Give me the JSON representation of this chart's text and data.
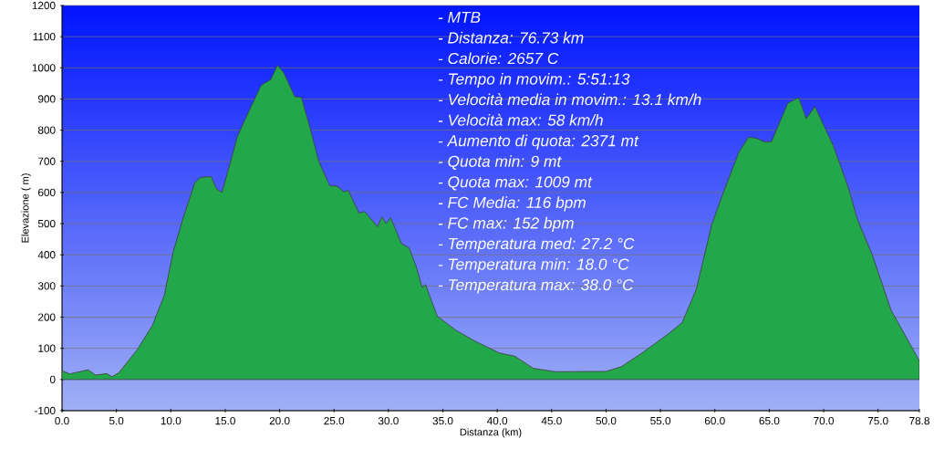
{
  "chart_data": {
    "type": "area",
    "xlabel": "Distanza (km)",
    "ylabel": "Elevazione ( m)",
    "x": [
      0,
      0.7,
      2.4,
      3.1,
      4.1,
      4.6,
      5.2,
      6.9,
      8.3,
      9.4,
      10.2,
      11.1,
      12.2,
      12.7,
      13.7,
      14.2,
      14.7,
      15.5,
      16.1,
      16.6,
      17.5,
      18.3,
      19.2,
      19.8,
      20.4,
      21.4,
      22.0,
      22.8,
      23.6,
      24.1,
      24.6,
      25.3,
      25.9,
      26.3,
      27.3,
      27.8,
      29.0,
      29.4,
      29.8,
      30.2,
      31.2,
      31.9,
      32.6,
      33.1,
      33.4,
      34.5,
      35.1,
      36.2,
      37.9,
      40.2,
      41.6,
      43.3,
      45.3,
      50.0,
      51.4,
      53.3,
      55.6,
      57.0,
      58.3,
      59.7,
      60.6,
      62.2,
      63.1,
      63.9,
      64.5,
      65.2,
      66.7,
      67.7,
      68.4,
      69.2,
      70.9,
      72.3,
      73.1,
      74.5,
      76.2,
      78.8
    ],
    "values": [
      28,
      18,
      31,
      14,
      19,
      9,
      21,
      95,
      173,
      270,
      407,
      514,
      631,
      648,
      651,
      612,
      600,
      700,
      778,
      817,
      885,
      944,
      963,
      1009,
      983,
      907,
      905,
      807,
      700,
      661,
      622,
      620,
      602,
      607,
      534,
      539,
      490,
      522,
      500,
      519,
      436,
      422,
      358,
      295,
      305,
      202,
      187,
      158,
      124,
      85,
      75,
      36,
      25,
      26,
      41,
      85,
      143,
      183,
      290,
      495,
      583,
      729,
      778,
      773,
      763,
      763,
      886,
      905,
      837,
      876,
      749,
      612,
      514,
      397,
      222,
      60
    ],
    "color": "#22a84a",
    "xlim": [
      0,
      78.8
    ],
    "ylim": [
      -100,
      1200
    ],
    "xticks": [
      {
        "value": 0,
        "label": "0.0"
      },
      {
        "value": 5,
        "label": "5.0"
      },
      {
        "value": 10,
        "label": "10.0"
      },
      {
        "value": 15,
        "label": "15.0"
      },
      {
        "value": 20,
        "label": "20.0"
      },
      {
        "value": 25,
        "label": "25.0"
      },
      {
        "value": 30,
        "label": "30.0"
      },
      {
        "value": 35,
        "label": "35.0"
      },
      {
        "value": 40,
        "label": "40.0"
      },
      {
        "value": 45,
        "label": "45.0"
      },
      {
        "value": 50,
        "label": "50.0"
      },
      {
        "value": 55,
        "label": "55.0"
      },
      {
        "value": 60,
        "label": "60.0"
      },
      {
        "value": 65,
        "label": "65.0"
      },
      {
        "value": 70,
        "label": "70.0"
      },
      {
        "value": 75,
        "label": "75.0"
      },
      {
        "value": 78.8,
        "label": "78.8"
      }
    ],
    "yticks": [
      -100,
      0,
      100,
      200,
      300,
      400,
      500,
      600,
      700,
      800,
      900,
      1000,
      1100,
      1200
    ],
    "grid": "y",
    "annotations": [
      "- MTB",
      "- Distanza: 76.73 km",
      "- Calorie: 2657 C",
      "- Tempo in movim.: 5:51:13",
      "- Velocità media in movim.: 13.1 km/h",
      "- Velocità max: 58 km/h",
      "- Aumento di quota: 2371 mt",
      "- Quota min: 9 mt",
      "- Quota max: 1009 mt",
      "- FC Media: 116 bpm",
      "- FC max: 152 bpm",
      "- Temperatura med: 27.2 °C",
      "- Temperatura min: 18.0 °C",
      "- Temperatura max: 38.0 °C"
    ]
  }
}
